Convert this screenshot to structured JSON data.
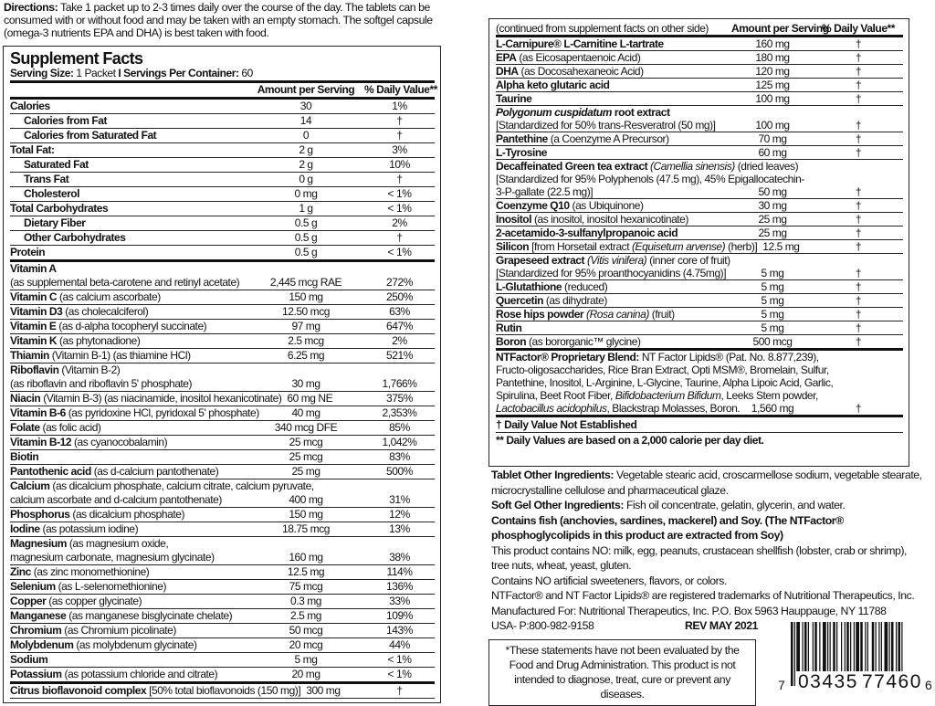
{
  "directions": {
    "label": "Directions:",
    "text": " Take 1 packet up to 2-3 times daily over the course of the day. The tablets can be consumed with or without food and may be taken with an empty stomach. The softgel capsule (omega-3 nutrients EPA and DHA) is best taken with food."
  },
  "facts": {
    "title": "Supplement Facts",
    "serving_size_label": "Serving Size:",
    "serving_size": " 1 Packet ",
    "sep": "I",
    "servings_label": " Servings Per Container:",
    "servings": " 60",
    "header": {
      "amount": "Amount per Serving",
      "dv": "% Daily Value**"
    },
    "rows": [
      {
        "lines": [
          [
            {
              "b": "Calories"
            }
          ]
        ],
        "amount": "30",
        "dv": "1%"
      },
      {
        "indent": true,
        "lines": [
          [
            {
              "b": "Calories from Fat"
            }
          ]
        ],
        "amount": "14",
        "dv": "†"
      },
      {
        "indent": true,
        "lines": [
          [
            {
              "b": "Calories from Saturated Fat"
            }
          ]
        ],
        "amount": "0",
        "dv": "†"
      },
      {
        "lines": [
          [
            {
              "b": "Total Fat:"
            }
          ]
        ],
        "amount": "2 g",
        "dv": "3%"
      },
      {
        "indent": true,
        "lines": [
          [
            {
              "b": "Saturated Fat"
            }
          ]
        ],
        "amount": "2 g",
        "dv": "10%"
      },
      {
        "indent": true,
        "lines": [
          [
            {
              "b": "Trans Fat"
            }
          ]
        ],
        "amount": "0 g",
        "dv": "†"
      },
      {
        "indent": true,
        "lines": [
          [
            {
              "b": "Cholesterol"
            }
          ]
        ],
        "amount": "0 mg",
        "dv": "< 1%"
      },
      {
        "lines": [
          [
            {
              "b": "Total Carbohydrates"
            }
          ]
        ],
        "amount": "1 g",
        "dv": "< 1%"
      },
      {
        "indent": true,
        "lines": [
          [
            {
              "b": "Dietary Fiber"
            }
          ]
        ],
        "amount": "0.5 g",
        "dv": "2%"
      },
      {
        "indent": true,
        "lines": [
          [
            {
              "b": "Other Carbohydrates"
            }
          ]
        ],
        "amount": "0.5 g",
        "dv": "†"
      },
      {
        "thick": true,
        "lines": [
          [
            {
              "b": "Protein"
            }
          ]
        ],
        "amount": "0.5 g",
        "dv": "< 1%"
      },
      {
        "lines": [
          [
            {
              "b": "Vitamin A"
            }
          ],
          [
            {
              "t": "(as supplemental beta-carotene and retinyl acetate)"
            }
          ]
        ],
        "amount": "2,445 mcg RAE",
        "dv": "272%"
      },
      {
        "lines": [
          [
            {
              "b": "Vitamin C"
            },
            {
              "t": " (as calcium ascorbate)"
            }
          ]
        ],
        "amount": "150 mg",
        "dv": "250%"
      },
      {
        "lines": [
          [
            {
              "b": "Vitamin D3"
            },
            {
              "t": " (as cholecalciferol)"
            }
          ]
        ],
        "amount": "12.50 mcg",
        "dv": "63%"
      },
      {
        "lines": [
          [
            {
              "b": "Vitamin E"
            },
            {
              "t": " (as d-alpha tocopheryl succinate)"
            }
          ]
        ],
        "amount": "97 mg",
        "dv": "647%"
      },
      {
        "lines": [
          [
            {
              "b": "Vitamin K"
            },
            {
              "t": " (as phytonadione)"
            }
          ]
        ],
        "amount": "2.5 mcg",
        "dv": "2%"
      },
      {
        "lines": [
          [
            {
              "b": "Thiamin"
            },
            {
              "t": " (Vitamin B-1) (as thiamine HCl)"
            }
          ]
        ],
        "amount": "6.25 mg",
        "dv": "521%"
      },
      {
        "lines": [
          [
            {
              "b": "Riboflavin"
            },
            {
              "t": " (Vitamin B-2)"
            }
          ],
          [
            {
              "t": "(as riboflavin and riboflavin 5' phosphate)"
            }
          ]
        ],
        "amount": "30 mg",
        "dv": "1,766%"
      },
      {
        "lines": [
          [
            {
              "b": "Niacin"
            },
            {
              "t": " (Vitamin B-3) (as niacinamide, inositol hexanicotinate)"
            }
          ]
        ],
        "amount": "60 mg NE",
        "dv": "375%"
      },
      {
        "lines": [
          [
            {
              "b": "Vitamin B-6"
            },
            {
              "t": " (as pyridoxine HCl, pyridoxal 5' phosphate)"
            }
          ]
        ],
        "amount": "40 mg",
        "dv": "2,353%"
      },
      {
        "lines": [
          [
            {
              "b": "Folate"
            },
            {
              "t": " (as folic acid)"
            }
          ]
        ],
        "amount": "340 mcg DFE",
        "dv": "85%"
      },
      {
        "lines": [
          [
            {
              "b": "Vitamin B-12"
            },
            {
              "t": " (as cyanocobalamin)"
            }
          ]
        ],
        "amount": "25 mcg",
        "dv": "1,042%"
      },
      {
        "lines": [
          [
            {
              "b": "Biotin"
            }
          ]
        ],
        "amount": "25 mcg",
        "dv": "83%"
      },
      {
        "lines": [
          [
            {
              "b": "Pantothenic acid"
            },
            {
              "t": " (as d-calcium pantothenate)"
            }
          ]
        ],
        "amount": "25 mg",
        "dv": "500%"
      },
      {
        "lines": [
          [
            {
              "b": "Calcium"
            },
            {
              "t": " (as dicalcium phosphate, calcium citrate, calcium pyruvate,"
            }
          ],
          [
            {
              "t": "calcium ascorbate and d-calcium pantothenate)"
            }
          ]
        ],
        "amount": "400 mg",
        "dv": "31%"
      },
      {
        "lines": [
          [
            {
              "b": "Phosphorus"
            },
            {
              "t": " (as dicalcium phosphate)"
            }
          ]
        ],
        "amount": "150 mg",
        "dv": "12%"
      },
      {
        "lines": [
          [
            {
              "b": "Iodine"
            },
            {
              "t": " (as potassium iodine)"
            }
          ]
        ],
        "amount": "18.75 mcg",
        "dv": "13%"
      },
      {
        "lines": [
          [
            {
              "b": "Magnesium"
            },
            {
              "t": " (as magnesium oxide,"
            }
          ],
          [
            {
              "t": "magnesium carbonate, magnesium glycinate)"
            }
          ]
        ],
        "amount": "160 mg",
        "dv": "38%"
      },
      {
        "lines": [
          [
            {
              "b": "Zinc"
            },
            {
              "t": " (as zinc monomethionine)"
            }
          ]
        ],
        "amount": "12.5 mg",
        "dv": "114%"
      },
      {
        "lines": [
          [
            {
              "b": "Selenium"
            },
            {
              "t": " (as L-selenomethionine)"
            }
          ]
        ],
        "amount": "75 mcg",
        "dv": "136%"
      },
      {
        "lines": [
          [
            {
              "b": "Copper"
            },
            {
              "t": " (as copper glycinate)"
            }
          ]
        ],
        "amount": "0.3 mg",
        "dv": "33%"
      },
      {
        "lines": [
          [
            {
              "b": "Manganese"
            },
            {
              "t": " (as manganese bisglycinate chelate)"
            }
          ]
        ],
        "amount": "2.5 mg",
        "dv": "109%"
      },
      {
        "lines": [
          [
            {
              "b": "Chromium"
            },
            {
              "t": " (as Chromium picolinate)"
            }
          ]
        ],
        "amount": "50 mcg",
        "dv": "143%"
      },
      {
        "lines": [
          [
            {
              "b": "Molybdenum"
            },
            {
              "t": " (as molybdenum glycinate)"
            }
          ]
        ],
        "amount": "20 mcg",
        "dv": "44%"
      },
      {
        "lines": [
          [
            {
              "b": "Sodium"
            }
          ]
        ],
        "amount": "5 mg",
        "dv": "< 1%"
      },
      {
        "thick": true,
        "lines": [
          [
            {
              "b": "Potassium"
            },
            {
              "t": " (as potassium chloride and citrate)"
            }
          ]
        ],
        "amount": "20 mg",
        "dv": "< 1%"
      },
      {
        "lines": [
          [
            {
              "b": "Citrus bioflavonoid complex"
            },
            {
              "t": " [50% total bioflavonoids (150 mg)]"
            }
          ]
        ],
        "amount": "300 mg",
        "dv": "†"
      }
    ]
  },
  "continued": {
    "header": {
      "label": "(continued from supplement facts on other side)",
      "amount": "Amount per Serving",
      "dv": "% Daily Value**"
    },
    "rows": [
      {
        "lines": [
          [
            {
              "b": "L-Carnipure® L-Carnitine L-tartrate"
            }
          ]
        ],
        "amount": "160 mg",
        "dv": "†"
      },
      {
        "lines": [
          [
            {
              "b": "EPA"
            },
            {
              "t": " (as Eicosapentaenoic Acid)"
            }
          ]
        ],
        "amount": "180 mg",
        "dv": "†"
      },
      {
        "lines": [
          [
            {
              "b": "DHA"
            },
            {
              "t": " (as Docosahexaneoic Acid)"
            }
          ]
        ],
        "amount": "120 mg",
        "dv": "†"
      },
      {
        "lines": [
          [
            {
              "b": "Alpha keto glutaric acid"
            }
          ]
        ],
        "amount": "125 mg",
        "dv": "†"
      },
      {
        "lines": [
          [
            {
              "b": "Taurine"
            }
          ]
        ],
        "amount": "100 mg",
        "dv": "†"
      },
      {
        "lines": [
          [
            {
              "bi": "Polygonum cuspidatum"
            },
            {
              "b": " root extract"
            }
          ],
          [
            {
              "t": "[Standardized for 50% trans-Resveratrol (50 mg)]"
            }
          ]
        ],
        "amount": "100 mg",
        "dv": "†"
      },
      {
        "lines": [
          [
            {
              "b": "Pantethine"
            },
            {
              "t": " (a Coenzyme A Precursor)"
            }
          ]
        ],
        "amount": "70 mg",
        "dv": "†"
      },
      {
        "lines": [
          [
            {
              "b": "L-Tyrosine"
            }
          ]
        ],
        "amount": "60 mg",
        "dv": "†"
      },
      {
        "lines": [
          [
            {
              "b": "Decaffeinated Green tea extract "
            },
            {
              "i": "(Camellia sinensis)"
            },
            {
              "t": " (dried leaves)"
            }
          ],
          [
            {
              "t": "[Standardized for 95% Polyphenols (47.5 mg), 45% Epigallocatechin-"
            }
          ],
          [
            {
              "t": "3-P-gallate (22.5 mg)]"
            }
          ]
        ],
        "amount": "50 mg",
        "dv": "†"
      },
      {
        "lines": [
          [
            {
              "b": "Coenzyme Q10"
            },
            {
              "t": " (as Ubiquinone)"
            }
          ]
        ],
        "amount": "30 mg",
        "dv": "†"
      },
      {
        "lines": [
          [
            {
              "b": "Inositol"
            },
            {
              "t": " (as inositol, inositol hexanicotinate)"
            }
          ]
        ],
        "amount": "25 mg",
        "dv": "†"
      },
      {
        "lines": [
          [
            {
              "b": "2-acetamido-3-sulfanylpropanoic acid"
            }
          ]
        ],
        "amount": "25 mg",
        "dv": "†"
      },
      {
        "lines": [
          [
            {
              "b": "Silicon"
            },
            {
              "t": " [from Horsetail extract "
            },
            {
              "i": "(Equisetum arvense)"
            },
            {
              "t": " (herb)]"
            }
          ]
        ],
        "amount": "12.5 mg",
        "dv": "†"
      },
      {
        "lines": [
          [
            {
              "b": "Grapeseed extract "
            },
            {
              "i": "(Vitis vinifera)"
            },
            {
              "t": " (inner core of fruit)"
            }
          ],
          [
            {
              "t": "[Standardized for 95% proanthocyanidins (4.75mg)]"
            }
          ]
        ],
        "amount": "5 mg",
        "dv": "†"
      },
      {
        "lines": [
          [
            {
              "b": "L-Glutathione"
            },
            {
              "t": " (reduced)"
            }
          ]
        ],
        "amount": "5 mg",
        "dv": "†"
      },
      {
        "lines": [
          [
            {
              "b": "Quercetin"
            },
            {
              "t": " (as dihydrate)"
            }
          ]
        ],
        "amount": "5 mg",
        "dv": "†"
      },
      {
        "lines": [
          [
            {
              "b": "Rose hips powder "
            },
            {
              "i": "(Rosa canina)"
            },
            {
              "t": " (fruit)"
            }
          ]
        ],
        "amount": "5 mg",
        "dv": "†"
      },
      {
        "lines": [
          [
            {
              "b": "Rutin"
            }
          ]
        ],
        "amount": "5 mg",
        "dv": "†"
      },
      {
        "thick": true,
        "lines": [
          [
            {
              "b": "Boron"
            },
            {
              "t": " (as bororganic™ glycine)"
            }
          ]
        ],
        "amount": "500 mcg",
        "dv": "†"
      },
      {
        "thick": true,
        "lines": [
          [
            {
              "b": "NTFactor® Proprietary Blend:"
            },
            {
              "t": " NT Factor Lipids® (Pat. No. 8.877,239),"
            }
          ],
          [
            {
              "t": "Fructo-oligosaccharides, Rice Bran Extract, Opti MSM®, Bromelain, Sulfur,"
            }
          ],
          [
            {
              "t": "Pantethine, Inositol, L-Arginine, L-Glycine, Taurine, Alpha Lipoic Acid, Garlic,"
            }
          ],
          [
            {
              "t": "Spirulina, Beet Root Fiber, "
            },
            {
              "i": "Bifidobacterium Bifidum"
            },
            {
              "t": ", Leeks Stem powder,"
            }
          ],
          [
            {
              "i": "Lactobacillus acidophilus"
            },
            {
              "t": ", Blackstrap Molasses, Boron."
            }
          ]
        ],
        "amount": "1,560 mg",
        "dv": "†"
      }
    ],
    "footnote_dv": "† Daily Value Not Established",
    "footnote_calorie": "** Daily Values are based on a 2,000 calorie per day diet."
  },
  "notes": {
    "tablet_label": "Tablet Other Ingredients:",
    "tablet": " Vegetable stearic acid, croscarmellose sodium, vegetable stearate, microcrystalline cellulose and pharmaceutical glaze.",
    "softgel_label": "Soft Gel Other Ingredients:",
    "softgel": " Fish oil concentrate, gelatin, glycerin, and water.",
    "allergen": "Contains fish (anchovies, sardines, mackerel) and Soy. (The NTFactor® phosphoglycolipids in this product are extracted from Soy)",
    "contains_no": "This product contains NO: milk, egg, peanuts, crustacean shellfish (lobster, crab or shrimp), tree nuts, wheat, yeast, gluten.",
    "no_artificial": "Contains NO artificial sweeteners, flavors, or colors.",
    "trademarks": "NTFactor® and NT Factor Lipids® are registered trademarks of Nutritional Therapeutics, Inc.",
    "manufacturer": "Manufactured For: Nutritional Therapeutics, Inc. P.O. Box 5963 Hauppauge, NY 11788",
    "phone": "USA- P:800-982-9158",
    "revision": "REV MAY 2021"
  },
  "disclaimer": "*These statements have not been evaluated by the Food and Drug Administration. This product is not intended to diagnose, treat, cure or prevent any diseases.",
  "barcode": {
    "first": "7",
    "left": "03435",
    "right": "77460",
    "last": "6"
  }
}
